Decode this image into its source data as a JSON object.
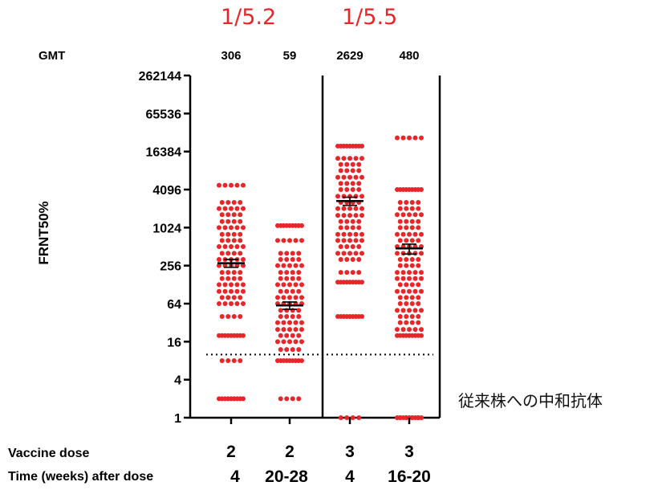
{
  "chart_data": {
    "type": "scatter",
    "ylabel": "FRNT50%",
    "y_scale": "log2",
    "ylim": [
      1,
      262144
    ],
    "y_ticks": [
      "1",
      "4",
      "16",
      "64",
      "256",
      "1024",
      "4096",
      "16384",
      "65536",
      "262144"
    ],
    "detection_limit": 10,
    "gmt_label": "GMT",
    "ratios": [
      "1/5.2",
      "1/5.5"
    ],
    "row_labels": {
      "dose": "Vaccine dose",
      "time": "Time (weeks) after dose"
    },
    "groups": [
      {
        "dose": "2",
        "time": "4",
        "gmt": "306",
        "mean": 280,
        "err": [
          240,
          320
        ],
        "points": [
          4800,
          2560,
          2048,
          1638,
          1280,
          1024,
          800,
          640,
          512,
          400,
          320,
          256,
          200,
          160,
          128,
          100,
          80,
          64,
          40,
          20,
          20,
          8,
          2,
          2
        ]
      },
      {
        "dose": "2",
        "time": "20-28",
        "gmt": "59",
        "mean": 60,
        "err": [
          52,
          68
        ],
        "points": [
          1100,
          1100,
          640,
          400,
          320,
          256,
          200,
          160,
          128,
          100,
          80,
          64,
          50,
          40,
          32,
          25,
          20,
          16,
          12,
          8,
          8,
          2
        ]
      },
      {
        "dose": "3",
        "time": "4",
        "gmt": "2629",
        "mean": 2700,
        "err": [
          2300,
          3100
        ],
        "points": [
          20000,
          20000,
          12800,
          10240,
          8192,
          6400,
          5120,
          4096,
          3200,
          2560,
          2048,
          1600,
          1280,
          1024,
          800,
          640,
          512,
          400,
          320,
          200,
          140,
          140,
          40,
          40,
          1
        ]
      },
      {
        "dose": "3",
        "time": "16-20",
        "gmt": "480",
        "mean": 480,
        "err": [
          390,
          560
        ],
        "points": [
          27000,
          4096,
          4096,
          2560,
          2048,
          1638,
          1280,
          1024,
          800,
          640,
          512,
          400,
          320,
          256,
          200,
          160,
          128,
          100,
          80,
          64,
          50,
          40,
          32,
          25,
          20,
          20,
          1,
          1,
          1
        ]
      }
    ]
  },
  "note": "従来株への中和抗体",
  "colors": {
    "points": "#e8262a",
    "axis": "#000000"
  }
}
